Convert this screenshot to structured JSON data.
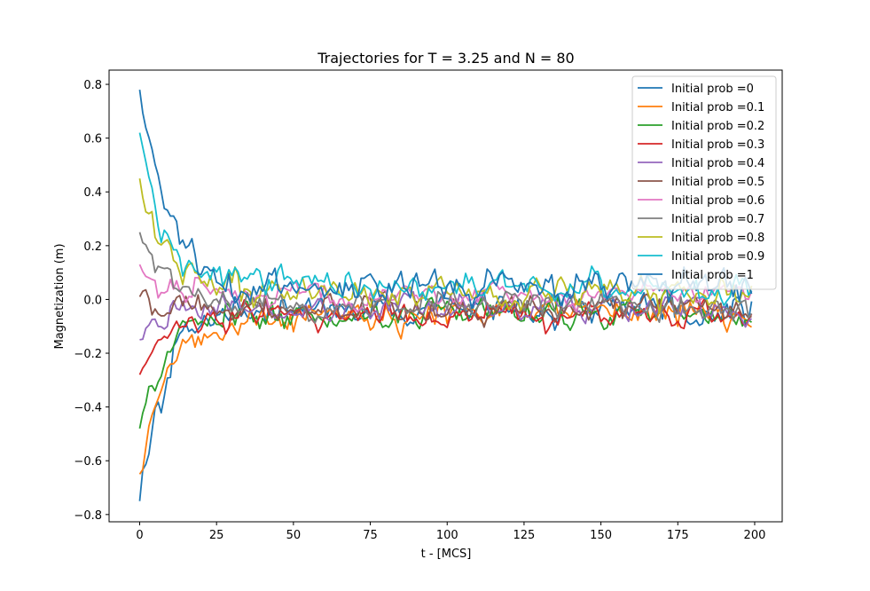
{
  "chart_data": {
    "type": "line",
    "title": "Trajectories for T = 3.25 and N = 80",
    "xlabel": "t - [MCS]",
    "ylabel": "Magnetization (m)",
    "xlim": [
      -9.95,
      208.95
    ],
    "ylim": [
      -0.827,
      0.853
    ],
    "xticks": [
      0,
      25,
      50,
      75,
      100,
      125,
      150,
      175,
      200
    ],
    "yticks": [
      -0.8,
      -0.6,
      -0.4,
      -0.2,
      0.0,
      0.2,
      0.4,
      0.6,
      0.8
    ],
    "xtick_labels": [
      "0",
      "25",
      "50",
      "75",
      "100",
      "125",
      "150",
      "175",
      "200"
    ],
    "ytick_labels": [
      "−0.8",
      "−0.6",
      "−0.4",
      "−0.2",
      "0.0",
      "0.2",
      "0.4",
      "0.6",
      "0.8"
    ],
    "grid": false,
    "legend_position": "top-right",
    "n_steps": 200,
    "series": [
      {
        "name": "Initial prob =0",
        "color": "#1f77b4",
        "start": -0.75,
        "equilibrium": -0.03,
        "tau": 8.0,
        "noise": 0.028,
        "seed": 101
      },
      {
        "name": "Initial prob =0.1",
        "color": "#ff7f0e",
        "start": -0.65,
        "equilibrium": -0.06,
        "tau": 8.0,
        "noise": 0.024,
        "seed": 202
      },
      {
        "name": "Initial prob =0.2",
        "color": "#2ca02c",
        "start": -0.48,
        "equilibrium": -0.05,
        "tau": 8.0,
        "noise": 0.024,
        "seed": 303
      },
      {
        "name": "Initial prob =0.3",
        "color": "#d62728",
        "start": -0.28,
        "equilibrium": -0.06,
        "tau": 8.0,
        "noise": 0.022,
        "seed": 404
      },
      {
        "name": "Initial prob =0.4",
        "color": "#9467bd",
        "start": -0.15,
        "equilibrium": -0.03,
        "tau": 8.0,
        "noise": 0.022,
        "seed": 505
      },
      {
        "name": "Initial prob =0.5",
        "color": "#8c564b",
        "start": 0.01,
        "equilibrium": -0.03,
        "tau": 8.0,
        "noise": 0.022,
        "seed": 606
      },
      {
        "name": "Initial prob =0.6",
        "color": "#e377c2",
        "start": 0.13,
        "equilibrium": 0.02,
        "tau": 8.0,
        "noise": 0.022,
        "seed": 707
      },
      {
        "name": "Initial prob =0.7",
        "color": "#7f7f7f",
        "start": 0.25,
        "equilibrium": -0.02,
        "tau": 8.0,
        "noise": 0.022,
        "seed": 808
      },
      {
        "name": "Initial prob =0.8",
        "color": "#bcbd22",
        "start": 0.45,
        "equilibrium": 0.03,
        "tau": 8.0,
        "noise": 0.026,
        "seed": 909
      },
      {
        "name": "Initial prob =0.9",
        "color": "#17becf",
        "start": 0.62,
        "equilibrium": 0.05,
        "tau": 8.0,
        "noise": 0.024,
        "seed": 1111
      },
      {
        "name": "Initial prob =1",
        "color": "#1f77b4",
        "start": 0.78,
        "equilibrium": 0.05,
        "tau": 9.0,
        "noise": 0.028,
        "seed": 1313
      }
    ]
  }
}
